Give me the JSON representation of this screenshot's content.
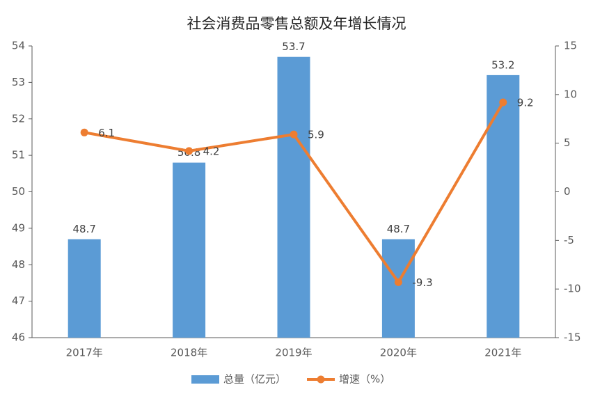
{
  "chart_data": {
    "type": "bar",
    "title": "社会消费品零售总额及年增长情况",
    "categories": [
      "2017年",
      "2018年",
      "2019年",
      "2020年",
      "2021年"
    ],
    "series": [
      {
        "name": "总量（亿元）",
        "type": "bar",
        "color": "#5b9bd5",
        "values": [
          48.7,
          50.8,
          53.7,
          48.7,
          53.2
        ]
      },
      {
        "name": "增速（%）",
        "type": "line",
        "axis": "y2",
        "color": "#ed7d31",
        "values": [
          6.1,
          4.2,
          5.9,
          -9.3,
          9.2
        ]
      }
    ],
    "ylim": [
      46,
      54
    ],
    "yticks": [
      46,
      47,
      48,
      49,
      50,
      51,
      52,
      53,
      54
    ],
    "y2lim": [
      -15,
      15
    ],
    "y2ticks": [
      -15,
      -10,
      -5,
      0,
      5,
      10,
      15
    ],
    "legend": "bottom"
  }
}
